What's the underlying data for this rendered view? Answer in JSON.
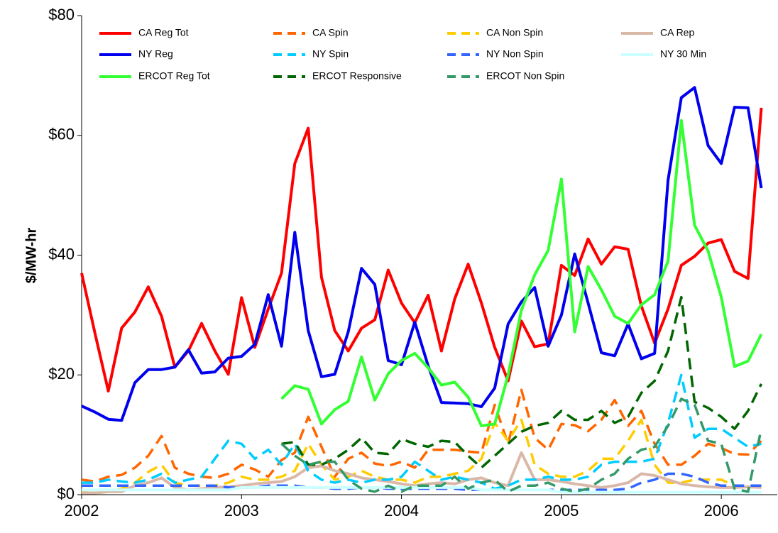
{
  "chart_data": {
    "type": "line",
    "y_label": "$/MW-hr",
    "x": [
      2002,
      2002.083,
      2002.167,
      2002.25,
      2002.333,
      2002.417,
      2002.5,
      2002.583,
      2002.667,
      2002.75,
      2002.833,
      2002.917,
      2003,
      2003.083,
      2003.167,
      2003.25,
      2003.333,
      2003.417,
      2003.5,
      2003.583,
      2003.667,
      2003.75,
      2003.833,
      2003.917,
      2004,
      2004.083,
      2004.167,
      2004.25,
      2004.333,
      2004.417,
      2004.5,
      2004.583,
      2004.667,
      2004.75,
      2004.833,
      2004.917,
      2005,
      2005.083,
      2005.167,
      2005.25,
      2005.333,
      2005.417,
      2005.5,
      2005.583,
      2005.667,
      2005.75,
      2005.833,
      2005.917,
      2006,
      2006.083,
      2006.167,
      2006.25
    ],
    "xlim": [
      2002,
      2006.35
    ],
    "xticks": [
      2002,
      2003,
      2004,
      2005,
      2006
    ],
    "ylim": [
      0,
      80
    ],
    "yticks": [
      {
        "value": 0,
        "label": "$0"
      },
      {
        "value": 20,
        "label": "$20"
      },
      {
        "value": 40,
        "label": "$40"
      },
      {
        "value": 60,
        "label": "$60"
      },
      {
        "value": 80,
        "label": "$80"
      }
    ],
    "series": [
      {
        "name": "CA Reg Tot",
        "color": "#ff0000",
        "dashed": false,
        "values": [
          37,
          27,
          17.3,
          27.8,
          30.5,
          34.7,
          29.8,
          21.3,
          24,
          28.6,
          24,
          20.1,
          32.9,
          24.6,
          31,
          37,
          55.3,
          61.2,
          36.3,
          27.4,
          24,
          27.8,
          29.2,
          37.5,
          32,
          28.7,
          33.3,
          24,
          32.7,
          38.5,
          32,
          24.6,
          19,
          29,
          24.7,
          25.2,
          38.3,
          36.6,
          42.7,
          38.5,
          41.4,
          41,
          31.5,
          25.3,
          31,
          38.3,
          39.8,
          42,
          42.6,
          37.3,
          36.1,
          64.6
        ]
      },
      {
        "name": "CA Spin",
        "color": "#ff6600",
        "dashed": true,
        "values": [
          2.5,
          2.2,
          3,
          3.3,
          4.5,
          6.5,
          9.8,
          4.5,
          3.5,
          3,
          2.8,
          3.5,
          5,
          4.2,
          3,
          5.8,
          7,
          13,
          8,
          3,
          6,
          7,
          5.2,
          4.8,
          5.5,
          4.5,
          7.5,
          7.5,
          7.5,
          7.2,
          7,
          15,
          8.5,
          17.5,
          9.5,
          7.5,
          11.8,
          11.6,
          10.6,
          12.5,
          15.8,
          11.5,
          14,
          8.5,
          5,
          5,
          6.5,
          8.5,
          7.8,
          6.8,
          6.7,
          9
        ]
      },
      {
        "name": "CA Non Spin",
        "color": "#ffcc00",
        "dashed": true,
        "values": [
          0.5,
          0.2,
          0.5,
          1,
          2,
          3.8,
          5,
          2,
          1.5,
          1.5,
          1.5,
          2,
          3,
          2.5,
          2.5,
          3,
          4,
          8.5,
          5,
          2.5,
          3,
          4,
          3,
          2.5,
          2.5,
          2,
          3,
          3,
          3.5,
          4,
          6,
          12,
          9,
          12.5,
          5,
          3.5,
          3,
          3,
          4,
          6,
          6,
          9,
          12.5,
          5,
          2,
          2,
          2.5,
          2.5,
          2.5,
          1.5,
          1.5,
          1.2
        ]
      },
      {
        "name": "CA Rep",
        "color": "#d9b8a8",
        "dashed": false,
        "values": [
          0.3,
          0.3,
          0.5,
          0.5,
          1.5,
          2,
          2.8,
          1.2,
          0.8,
          1,
          1.2,
          1.3,
          1.5,
          1.8,
          2,
          2.2,
          3,
          4.5,
          4.8,
          4,
          3.5,
          2.8,
          2.5,
          2.2,
          1.8,
          1.5,
          1.8,
          2,
          1.8,
          2.5,
          2.8,
          2,
          1.5,
          7,
          2.5,
          2.5,
          2.2,
          1.8,
          1.5,
          1.2,
          1.5,
          2,
          3.5,
          3.2,
          2.5,
          1.8,
          1.5,
          1.3,
          1.2,
          1.2,
          1.3,
          1.2
        ]
      },
      {
        "name": "NY Reg",
        "color": "#0000ee",
        "dashed": false,
        "values": [
          14.8,
          13.8,
          12.6,
          12.4,
          18.7,
          20.9,
          20.9,
          21.3,
          24.2,
          20.3,
          20.5,
          22.8,
          23.1,
          25.1,
          33.4,
          24.8,
          43.8,
          27.4,
          19.7,
          20.1,
          27.2,
          37.8,
          35.1,
          22.4,
          21.7,
          28.8,
          21.5,
          15.4,
          15.3,
          15.2,
          14.7,
          17.8,
          28.5,
          32.2,
          34.6,
          24.8,
          30,
          40.2,
          32,
          23.7,
          23.2,
          28.5,
          22.7,
          23.6,
          52.5,
          66.3,
          68,
          58.3,
          55.3,
          64.7,
          64.6,
          51.2
        ]
      },
      {
        "name": "NY Spin",
        "color": "#00ccff",
        "dashed": true,
        "values": [
          2,
          2,
          2.5,
          2.2,
          2,
          2.5,
          3.5,
          2,
          2.5,
          3,
          6,
          9,
          8.5,
          6,
          7.5,
          5,
          8.5,
          4,
          2.5,
          2,
          2.5,
          2,
          2.5,
          2.5,
          3,
          5.5,
          4,
          2.5,
          3,
          2.5,
          2,
          1,
          1.5,
          2.5,
          2.5,
          3,
          2.5,
          2.5,
          3,
          5,
          5.5,
          5.5,
          5.5,
          6,
          12,
          20,
          9.5,
          11,
          11,
          9.5,
          8,
          8.5
        ]
      },
      {
        "name": "NY Non Spin",
        "color": "#3366ff",
        "dashed": true,
        "values": [
          1.5,
          1.5,
          1.5,
          1.5,
          1.5,
          1.5,
          1.5,
          1.5,
          1.5,
          1.5,
          1.5,
          1.2,
          1.2,
          1.2,
          1.5,
          1.5,
          1.5,
          1.2,
          1.2,
          1,
          1,
          1.2,
          1.2,
          1,
          1,
          1,
          1,
          1,
          1,
          0.8,
          0.8,
          0.8,
          0.8,
          0.8,
          0.8,
          0.8,
          0.8,
          0.8,
          0.8,
          0.8,
          0.8,
          1,
          2,
          2.5,
          3.5,
          3.5,
          3,
          2,
          1.5,
          1.5,
          1.5,
          1.5
        ]
      },
      {
        "name": "NY 30 Min",
        "color": "#ccffff",
        "dashed": false,
        "values": [
          0.8,
          0.8,
          0.8,
          0.8,
          0.8,
          0.8,
          0.8,
          0.8,
          0.8,
          0.8,
          0.8,
          0.8,
          1.2,
          1.2,
          1.2,
          1.2,
          1.2,
          1.2,
          1.2,
          1.2,
          1.2,
          1.2,
          1.2,
          1.2,
          1.2,
          1.2,
          1.2,
          1.2,
          1.2,
          1.2,
          0.8,
          0.8,
          0.8,
          0.8,
          0.8,
          0.8,
          0.4,
          0.4,
          0.4,
          0.4,
          0.4,
          0.4,
          0.4,
          0.4,
          0.4,
          0.4,
          0.4,
          0.4,
          0.4,
          0.4,
          0.4,
          0.4
        ]
      },
      {
        "name": "ERCOT Reg Tot",
        "color": "#33ff33",
        "dashed": false,
        "values": [
          null,
          null,
          null,
          null,
          null,
          null,
          null,
          null,
          null,
          null,
          null,
          null,
          null,
          null,
          null,
          16,
          18.2,
          17.6,
          11.8,
          14.2,
          15.6,
          23,
          15.8,
          20.2,
          22.4,
          23.6,
          21.2,
          18.3,
          18.8,
          16.3,
          11.5,
          11.8,
          20,
          30.8,
          36.7,
          40.8,
          52.7,
          27.2,
          38.1,
          34.2,
          29.8,
          28.6,
          31.7,
          33.4,
          39,
          62.5,
          45,
          40.7,
          33,
          21.4,
          22.3,
          26.8
        ]
      },
      {
        "name": "ERCOT Responsive",
        "color": "#006600",
        "dashed": true,
        "values": [
          null,
          null,
          null,
          null,
          null,
          null,
          null,
          null,
          null,
          null,
          null,
          null,
          null,
          null,
          null,
          8.5,
          8.8,
          5,
          5,
          6,
          7.5,
          9.5,
          7,
          6.8,
          9.3,
          8.5,
          8,
          9,
          8.8,
          6.5,
          4.5,
          6.5,
          8.5,
          10.5,
          11.5,
          12,
          14,
          12.5,
          12.5,
          14,
          12,
          13,
          17,
          19,
          24,
          33,
          15.5,
          14.5,
          13,
          11,
          14,
          18.5
        ]
      },
      {
        "name": "ERCOT Non Spin",
        "color": "#339966",
        "dashed": true,
        "values": [
          null,
          null,
          null,
          null,
          null,
          null,
          null,
          null,
          null,
          null,
          null,
          null,
          null,
          null,
          null,
          8.5,
          6.5,
          5,
          5.5,
          5.5,
          2.5,
          1,
          0.5,
          1.5,
          0.5,
          1.5,
          1.5,
          1.5,
          3,
          1,
          2,
          2.5,
          0.5,
          1.5,
          1.5,
          2,
          1,
          0.5,
          1,
          2.5,
          3.5,
          6,
          7.5,
          8,
          11.5,
          16,
          15,
          9,
          8.5,
          1,
          0.5,
          11
        ]
      }
    ]
  }
}
